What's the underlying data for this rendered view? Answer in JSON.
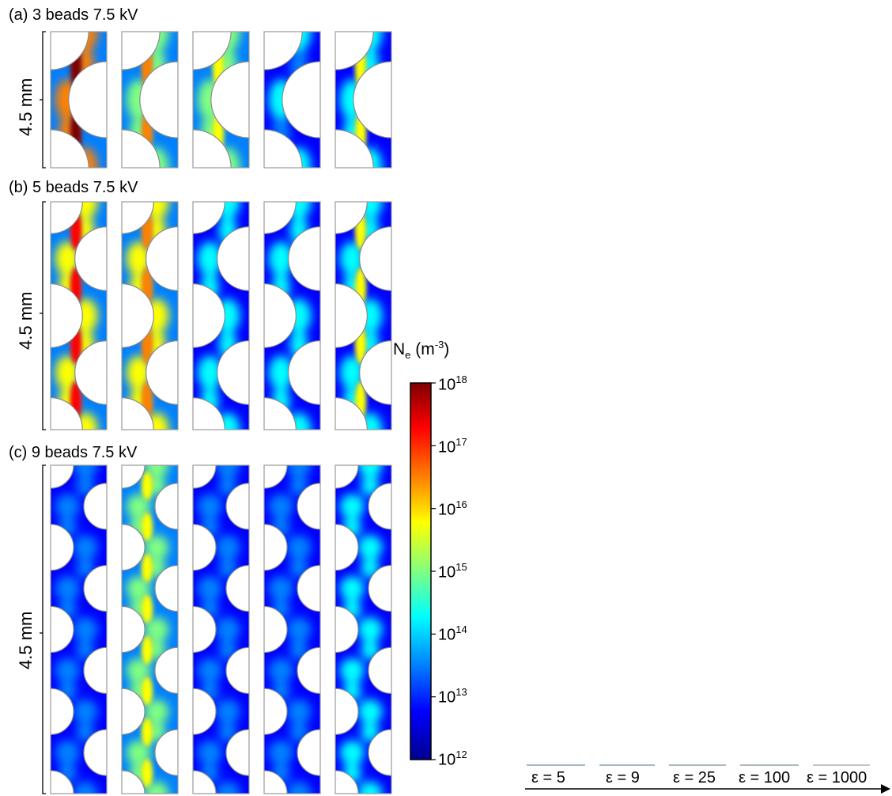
{
  "panels": [
    {
      "title": "(a) 3 beads 7.5 kV",
      "size_label": "4.5 mm",
      "beads": 3
    },
    {
      "title": "(b) 5 beads 7.5 kV",
      "size_label": "4.5 mm",
      "beads": 5
    },
    {
      "title": "(c) 9 beads 7.5 kV",
      "size_label": "4.5 mm",
      "beads": 9
    }
  ],
  "colorbar": {
    "title_main": "N",
    "title_sub": "e",
    "title_unit_open": " (m",
    "title_unit_sup": "-3",
    "title_unit_close": ")",
    "base": "10",
    "exponents": [
      "18",
      "17",
      "16",
      "15",
      "14",
      "13",
      "12"
    ],
    "stops": [
      "#7f0000",
      "#ff0000",
      "#ff8000",
      "#ffff00",
      "#80ff80",
      "#00ffff",
      "#0080ff",
      "#0000ff",
      "#00008f"
    ]
  },
  "epsilon_labels": [
    "ε = 5",
    "ε = 9",
    "ε = 25",
    "ε = 100",
    "ε = 1000"
  ],
  "intensity": {
    "a": [
      3,
      2,
      1.5,
      0.8,
      1.4
    ],
    "b": [
      2.6,
      2.2,
      1,
      0.9,
      1.3
    ],
    "c": [
      0.3,
      1.7,
      0.4,
      0.5,
      0.9
    ]
  }
}
